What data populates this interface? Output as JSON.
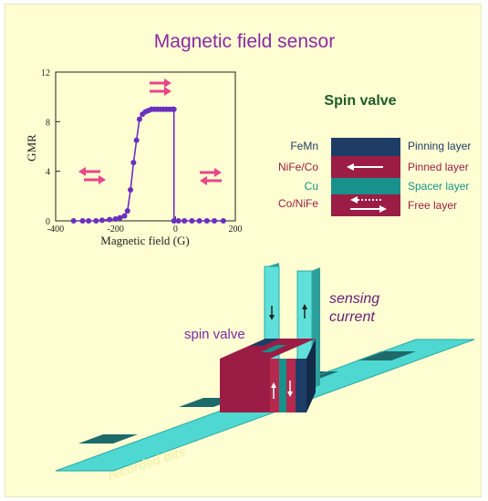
{
  "title": "Magnetic field sensor",
  "spin_valve_heading": "Spin valve",
  "stack": {
    "materials": [
      "FeMn",
      "NiFe/Co",
      "Cu",
      "Co/NiFe"
    ],
    "layers": [
      "Pinning layer",
      "Pinned layer",
      "Spacer layer",
      "Free layer"
    ],
    "colors": {
      "pinning": "#1e3d66",
      "pinned": "#9b1d45",
      "spacer": "#17918b",
      "free": "#9b1d45"
    }
  },
  "illustration": {
    "spin_valve_label": "spin valve",
    "sensing_current_label": [
      "sensing",
      "current"
    ],
    "recorded_bits_label": "recorded bits"
  },
  "chart_data": {
    "type": "line",
    "xlabel": "Magnetic field (G)",
    "ylabel": "GMR",
    "xlim": [
      -400,
      200
    ],
    "ylim": [
      0,
      12
    ],
    "x_ticks": [
      -400,
      -200,
      0,
      200
    ],
    "y_ticks": [
      0,
      4,
      8,
      12
    ],
    "grid": false,
    "series": [
      {
        "x": [
          -340,
          -310,
          -290,
          -265,
          -245,
          -220,
          -200,
          -185,
          -170,
          -160,
          -150,
          -140,
          -130,
          -120,
          -110,
          -100,
          -90,
          -80,
          -70,
          -60,
          -50,
          -40,
          -30,
          -20,
          -10,
          -5
        ],
        "y": [
          0,
          0,
          0,
          0,
          0.05,
          0.1,
          0.15,
          0.25,
          0.4,
          0.8,
          2.5,
          4.7,
          6.5,
          8.2,
          8.6,
          8.8,
          8.9,
          9.0,
          9.0,
          9.0,
          9.0,
          9.0,
          9.0,
          9.0,
          9.0,
          9.0
        ]
      },
      {
        "x": [
          -5,
          10,
          30,
          55,
          80,
          105,
          130,
          160
        ],
        "y": [
          0,
          0,
          0,
          0,
          0,
          0,
          0,
          0
        ]
      }
    ]
  }
}
